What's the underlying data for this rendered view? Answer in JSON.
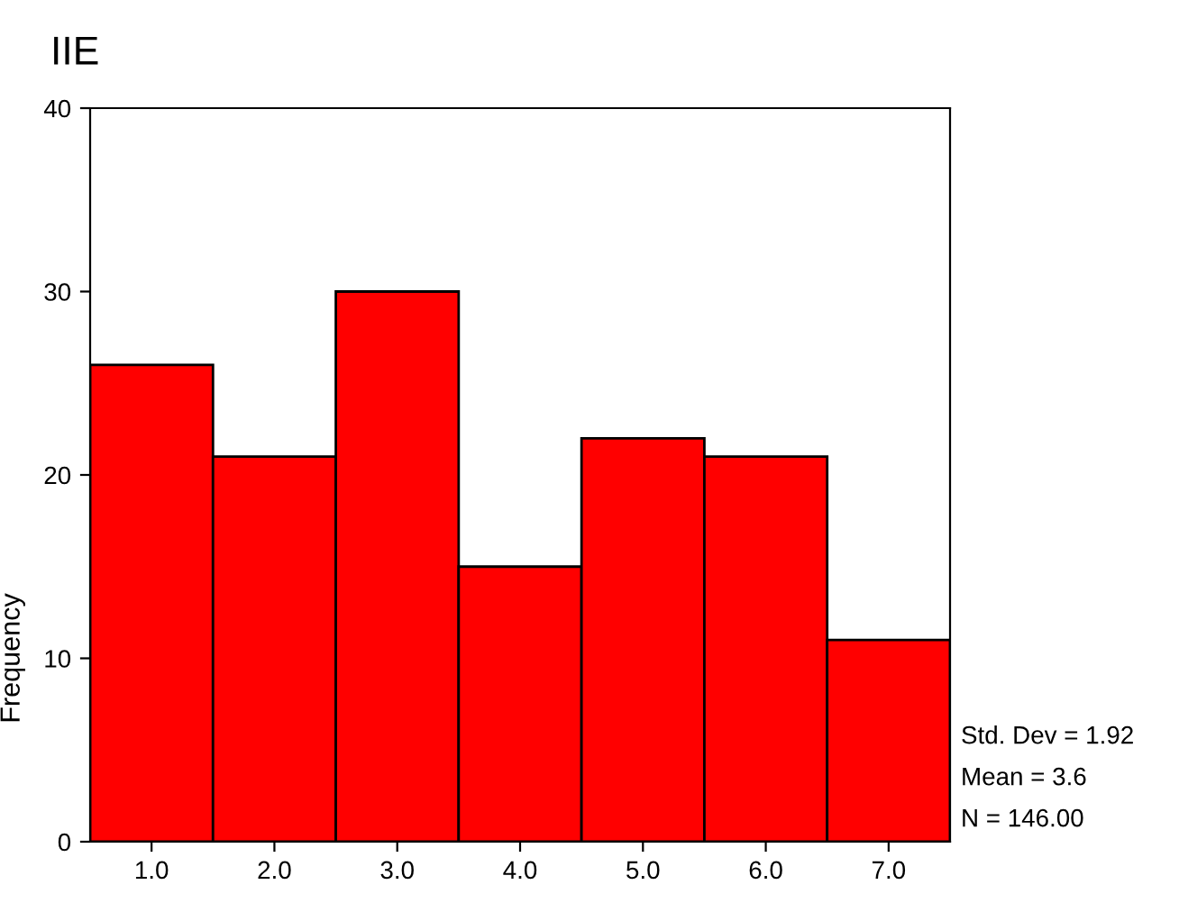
{
  "chart_data": {
    "type": "histogram",
    "title": "IIE",
    "ylabel": "Frequency",
    "bins": [
      0.5,
      1.5,
      2.5,
      3.5,
      4.5,
      5.5,
      6.5,
      7.5
    ],
    "values": [
      26,
      21,
      30,
      15,
      22,
      21,
      11
    ],
    "color": "#ff0000",
    "xlim": [
      0.5,
      7.5
    ],
    "xticks": [
      {
        "value": 1,
        "label": "1.0"
      },
      {
        "value": 2,
        "label": "2.0"
      },
      {
        "value": 3,
        "label": "3.0"
      },
      {
        "value": 4,
        "label": "4.0"
      },
      {
        "value": 5,
        "label": "5.0"
      },
      {
        "value": 6,
        "label": "6.0"
      },
      {
        "value": 7,
        "label": "7.0"
      }
    ],
    "ylim": [
      0,
      40
    ],
    "yticks": [
      0,
      10,
      20,
      30,
      40
    ],
    "grid": false,
    "annotations": [
      "Std. Dev = 1.92",
      "Mean = 3.6",
      "N = 146.00"
    ]
  }
}
